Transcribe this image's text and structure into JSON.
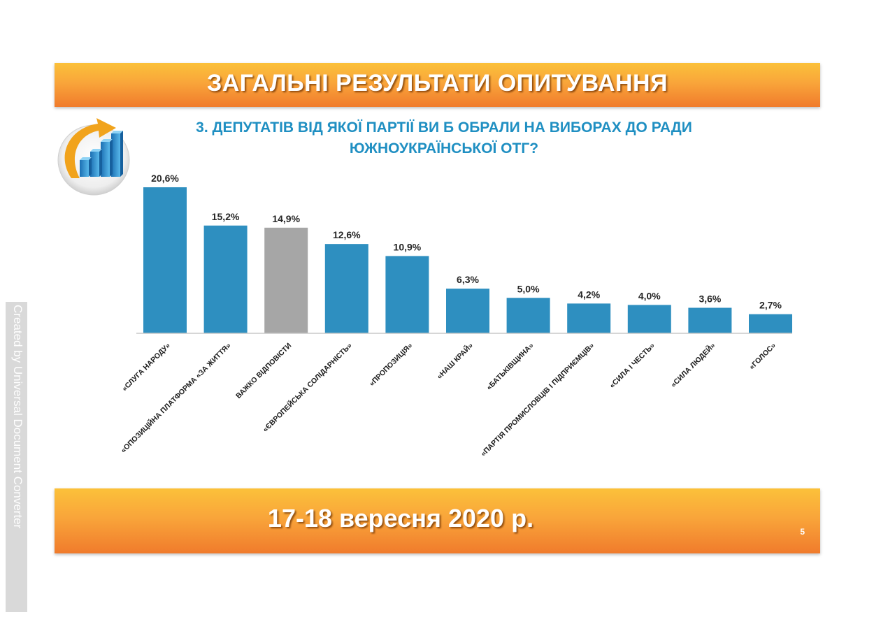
{
  "header": {
    "title": "ЗАГАЛЬНІ РЕЗУЛЬТАТИ ОПИТУВАННЯ"
  },
  "question": {
    "line1": "3. ДЕПУТАТІВ ВІД ЯКОЇ ПАРТІЇ ВИ Б ОБРАЛИ НА ВИБОРАХ ДО РАДИ",
    "line2": "ЮЖНОУКРАЇНСЬКОЇ ОТГ?"
  },
  "footer": {
    "date": "17-18 вересня 2020 р.",
    "page": "5"
  },
  "watermark": "Created by Universal Document Converter",
  "colors": {
    "bar": "#2e8fc0",
    "bar_highlight": "#a6a6a6",
    "banner_top": "#fbc13a",
    "banner_bottom": "#f07b2c",
    "question_text": "#1f8fc2"
  },
  "chart_data": {
    "type": "bar",
    "categories": [
      "«СЛУГА НАРОДУ»",
      "«ОПОЗИЦІЙНА ПЛАТФОРМА «ЗА ЖИТТЯ»",
      "ВАЖКО ВІДПОВІСТИ",
      "«ЄВРОПЕЙСЬКА СОЛІДАРНІСТЬ»",
      "«ПРОПОЗИЦІЯ»",
      "«НАШ КРАЙ»",
      "«БАТЬКІВЩИНА»",
      "«ПАРТІЯ ПРОМИСЛОВЦІВ І ПІДПРИЄМЦІВ»",
      "«СИЛА І ЧЕСТЬ»",
      "«СИЛА ЛЮДЕЙ»",
      "«ГОЛОС»"
    ],
    "values": [
      20.6,
      15.2,
      14.9,
      12.6,
      10.9,
      6.3,
      5.0,
      4.2,
      4.0,
      3.6,
      2.7
    ],
    "value_labels": [
      "20,6%",
      "15,2%",
      "14,9%",
      "12,6%",
      "10,9%",
      "6,3%",
      "5,0%",
      "4,2%",
      "4,0%",
      "3,6%",
      "2,7%"
    ],
    "highlight_index": 2,
    "ylim": [
      0,
      20.6
    ],
    "grid": false,
    "legend": "none"
  }
}
